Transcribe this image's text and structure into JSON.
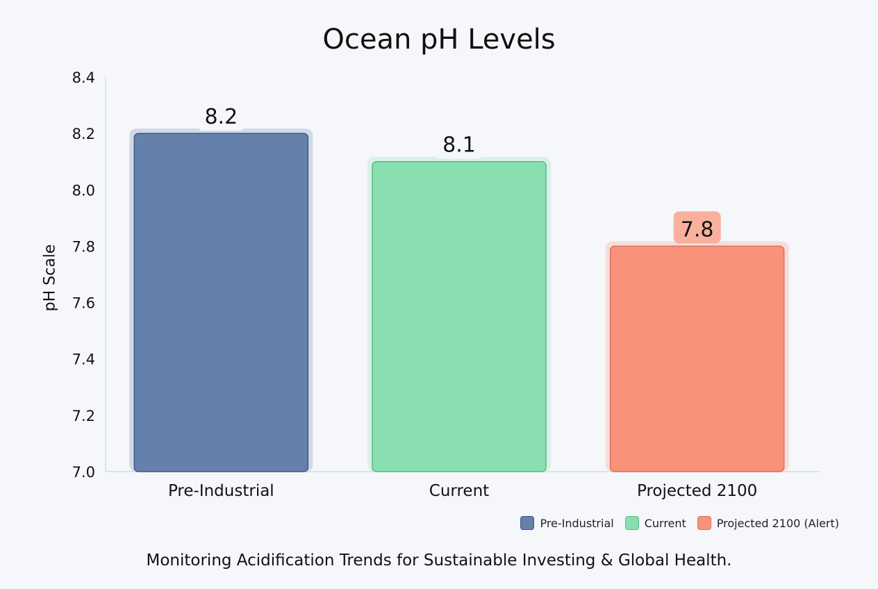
{
  "chart_data": {
    "type": "bar",
    "title": "Ocean pH Levels",
    "xlabel": "",
    "ylabel": "pH Scale",
    "ylim": [
      7.0,
      8.4
    ],
    "yticks": [
      "7.0",
      "7.2",
      "7.4",
      "7.6",
      "7.8",
      "8.0",
      "8.2",
      "8.4"
    ],
    "categories": [
      "Pre-Industrial",
      "Current",
      "Projected 2100"
    ],
    "values": [
      8.2,
      8.1,
      7.8
    ],
    "data_labels": [
      "8.2",
      "8.1",
      "7.8"
    ],
    "colors": [
      "#6580ab",
      "#8adfb0",
      "#f8927b"
    ],
    "borders": [
      "#3f5782",
      "#5bb985",
      "#e0705a"
    ],
    "legend_position": "bottom-right",
    "legend": [
      "Pre-Industrial",
      "Current",
      "Projected 2100 (Alert)"
    ],
    "grid": false
  },
  "caption": "Monitoring Acidification Trends for Sustainable Investing & Global Health."
}
